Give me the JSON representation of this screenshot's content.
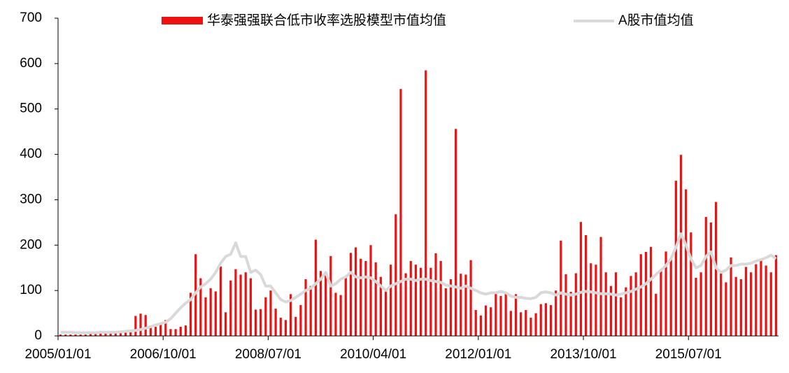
{
  "chart_data": {
    "type": "bar_line",
    "categories": [
      "2005/01/01",
      null,
      null,
      null,
      null,
      null,
      null,
      null,
      null,
      null,
      null,
      null,
      null,
      null,
      null,
      null,
      null,
      null,
      null,
      null,
      null,
      "2006/10/01",
      null,
      null,
      null,
      null,
      null,
      null,
      null,
      null,
      null,
      null,
      null,
      null,
      null,
      null,
      null,
      null,
      null,
      null,
      null,
      null,
      "2008/07/01",
      null,
      null,
      null,
      null,
      null,
      null,
      null,
      null,
      null,
      null,
      null,
      null,
      null,
      null,
      null,
      null,
      null,
      null,
      null,
      null,
      "2010/04/01",
      null,
      null,
      null,
      null,
      null,
      null,
      null,
      null,
      null,
      null,
      null,
      null,
      null,
      null,
      null,
      null,
      null,
      null,
      null,
      null,
      "2012/01/01",
      null,
      null,
      null,
      null,
      null,
      null,
      null,
      null,
      null,
      null,
      null,
      null,
      null,
      null,
      null,
      null,
      null,
      null,
      null,
      null,
      "2013/10/01",
      null,
      null,
      null,
      null,
      null,
      null,
      null,
      null,
      null,
      null,
      null,
      null,
      null,
      null,
      null,
      null,
      null,
      null,
      null,
      null,
      "2015/07/01",
      null,
      null,
      null,
      null,
      null,
      null,
      null,
      null,
      null,
      null,
      null,
      null,
      null,
      null,
      null,
      null,
      null
    ],
    "series": [
      {
        "name": "华泰强强联合低市收率选股模型市值均值",
        "color": "#ee1111",
        "kind": "bar",
        "values": [
          3,
          3,
          3,
          3,
          3,
          3,
          4,
          4,
          5,
          5,
          5,
          6,
          6,
          7,
          8,
          44,
          49,
          46,
          22,
          20,
          25,
          35,
          15,
          15,
          20,
          23,
          95,
          180,
          127,
          85,
          105,
          98,
          153,
          52,
          122,
          147,
          135,
          140,
          127,
          58,
          59,
          85,
          100,
          60,
          40,
          35,
          92,
          42,
          68,
          125,
          110,
          212,
          143,
          135,
          176,
          95,
          90,
          130,
          183,
          195,
          170,
          165,
          200,
          162,
          130,
          100,
          157,
          268,
          544,
          138,
          165,
          157,
          150,
          585,
          150,
          182,
          165,
          105,
          125,
          456,
          137,
          135,
          167,
          57,
          45,
          67,
          63,
          93,
          88,
          95,
          55,
          92,
          52,
          57,
          40,
          50,
          70,
          72,
          68,
          100,
          210,
          136,
          97,
          138,
          251,
          222,
          160,
          157,
          218,
          140,
          110,
          140,
          85,
          107,
          132,
          140,
          180,
          185,
          196,
          93,
          147,
          186,
          170,
          342,
          399,
          323,
          228,
          128,
          140,
          262,
          250,
          295,
          140,
          118,
          173,
          130,
          125,
          152,
          140,
          158,
          168,
          155,
          140,
          178
        ]
      },
      {
        "name": "A股市值均值",
        "color": "#d9d9d9",
        "kind": "line",
        "values": [
          8,
          8,
          8,
          7,
          7,
          7,
          7,
          7,
          8,
          8,
          8,
          8,
          9,
          10,
          11,
          12,
          14,
          17,
          20,
          24,
          27,
          30,
          38,
          50,
          62,
          72,
          80,
          95,
          108,
          115,
          125,
          140,
          160,
          175,
          180,
          205,
          175,
          175,
          140,
          145,
          135,
          110,
          110,
          95,
          80,
          75,
          78,
          85,
          92,
          100,
          105,
          115,
          125,
          140,
          110,
          115,
          125,
          130,
          140,
          130,
          128,
          130,
          128,
          120,
          110,
          100,
          110,
          115,
          120,
          125,
          125,
          122,
          125,
          125,
          122,
          120,
          118,
          112,
          110,
          108,
          105,
          110,
          105,
          100,
          95,
          92,
          95,
          95,
          98,
          95,
          88,
          85,
          85,
          83,
          82,
          85,
          95,
          97,
          95,
          90,
          95,
          92,
          90,
          92,
          96,
          98,
          97,
          95,
          93,
          93,
          92,
          90,
          92,
          95,
          98,
          103,
          108,
          115,
          125,
          135,
          145,
          155,
          170,
          195,
          225,
          200,
          170,
          150,
          155,
          175,
          185,
          150,
          140,
          145,
          155,
          155,
          158,
          158,
          160,
          165,
          168,
          172,
          178,
          170
        ]
      }
    ],
    "ylim": [
      0,
      700
    ],
    "yticks": [
      0,
      100,
      200,
      300,
      400,
      500,
      600,
      700
    ]
  }
}
